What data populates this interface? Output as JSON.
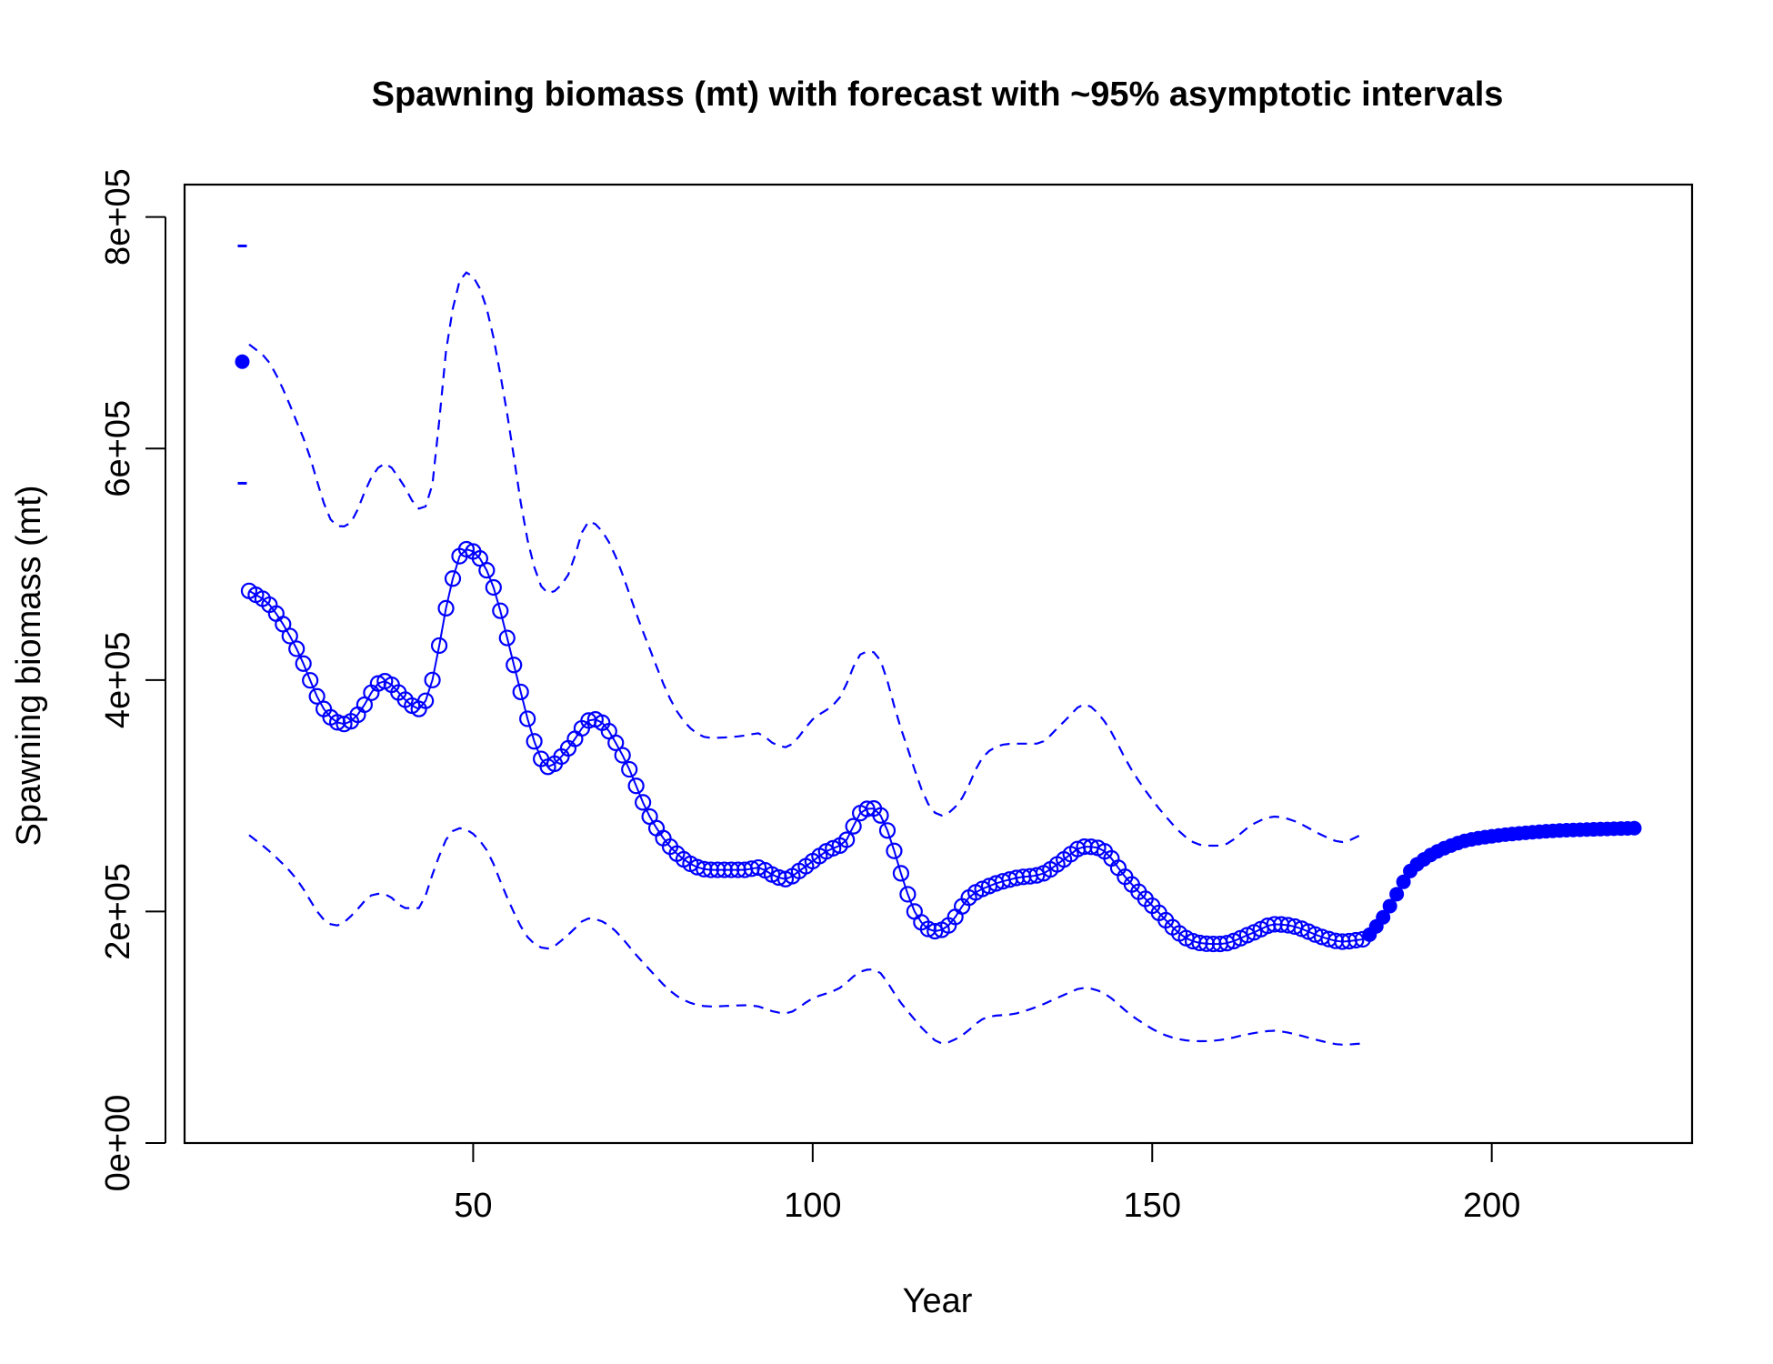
{
  "chart_data": {
    "type": "line",
    "title": "Spawning biomass (mt) with forecast with ~95% asymptotic intervals",
    "xlabel": "Year",
    "ylabel": "Spawning biomass (mt)",
    "xlim": [
      7.5,
      229.5
    ],
    "ylim": [
      0,
      800000
    ],
    "x_ticks": [
      50,
      100,
      150,
      200
    ],
    "x_tick_labels": [
      "50",
      "100",
      "150",
      "200"
    ],
    "y_ticks": [
      0,
      200000,
      400000,
      600000,
      800000
    ],
    "y_tick_labels": [
      "0e+00",
      "2e+05",
      "4e+05",
      "6e+05",
      "8e+05"
    ],
    "grid": false,
    "colors": {
      "series": "#0000ff",
      "axis": "#000000"
    },
    "virgin": {
      "x": 16,
      "value": 675000,
      "lower": 570000,
      "upper": 775000
    },
    "estimate": {
      "x_start": 17,
      "knots": [
        [
          17,
          477000
        ],
        [
          20,
          465000
        ],
        [
          24,
          427000
        ],
        [
          28,
          375000
        ],
        [
          31,
          362000
        ],
        [
          33,
          370000
        ],
        [
          36,
          397000
        ],
        [
          37,
          399000
        ],
        [
          40,
          383000
        ],
        [
          42,
          375000
        ],
        [
          44,
          400000
        ],
        [
          46,
          462000
        ],
        [
          48,
          507000
        ],
        [
          49,
          513000
        ],
        [
          51,
          505000
        ],
        [
          53,
          480000
        ],
        [
          56,
          413000
        ],
        [
          59,
          347000
        ],
        [
          61,
          325000
        ],
        [
          64,
          341000
        ],
        [
          67,
          365000
        ],
        [
          68,
          366000
        ],
        [
          72,
          335000
        ],
        [
          76,
          282000
        ],
        [
          80,
          250000
        ],
        [
          85,
          236000
        ],
        [
          90,
          236000
        ],
        [
          92,
          238000
        ],
        [
          94,
          232000
        ],
        [
          96,
          228000
        ],
        [
          98,
          235000
        ],
        [
          102,
          252000
        ],
        [
          105,
          262000
        ],
        [
          107,
          285000
        ],
        [
          109,
          289000
        ],
        [
          111,
          270000
        ],
        [
          113,
          233000
        ],
        [
          115,
          200000
        ],
        [
          118,
          183000
        ],
        [
          120,
          188000
        ],
        [
          123,
          212000
        ],
        [
          126,
          222000
        ],
        [
          130,
          229000
        ],
        [
          134,
          233000
        ],
        [
          137,
          245000
        ],
        [
          140,
          256000
        ],
        [
          143,
          252000
        ],
        [
          146,
          230000
        ],
        [
          150,
          205000
        ],
        [
          155,
          177000
        ],
        [
          160,
          172000
        ],
        [
          165,
          182000
        ],
        [
          168,
          189000
        ],
        [
          171,
          187000
        ],
        [
          175,
          178000
        ],
        [
          178,
          174000
        ],
        [
          181,
          176000
        ]
      ],
      "upper_knots": [
        [
          17,
          690000
        ],
        [
          20,
          674000
        ],
        [
          25,
          609000
        ],
        [
          30,
          533000
        ],
        [
          32,
          536000
        ],
        [
          35,
          575000
        ],
        [
          37,
          587000
        ],
        [
          40,
          566000
        ],
        [
          42,
          548000
        ],
        [
          44,
          569000
        ],
        [
          46,
          684000
        ],
        [
          48,
          745000
        ],
        [
          49,
          752000
        ],
        [
          52,
          721000
        ],
        [
          55,
          630000
        ],
        [
          58,
          521000
        ],
        [
          61,
          475000
        ],
        [
          64,
          491000
        ],
        [
          67,
          537000
        ],
        [
          70,
          519000
        ],
        [
          75,
          442000
        ],
        [
          80,
          373000
        ],
        [
          85,
          350000
        ],
        [
          90,
          352000
        ],
        [
          92,
          354000
        ],
        [
          94,
          346000
        ],
        [
          96,
          342000
        ],
        [
          100,
          366000
        ],
        [
          104,
          385000
        ],
        [
          107,
          422000
        ],
        [
          109,
          424000
        ],
        [
          113,
          358000
        ],
        [
          117,
          293000
        ],
        [
          119,
          283000
        ],
        [
          122,
          298000
        ],
        [
          125,
          333000
        ],
        [
          130,
          345000
        ],
        [
          133,
          345000
        ],
        [
          137,
          364000
        ],
        [
          140,
          379000
        ],
        [
          143,
          364000
        ],
        [
          147,
          322000
        ],
        [
          152,
          282000
        ],
        [
          156,
          260000
        ],
        [
          160,
          257000
        ],
        [
          165,
          276000
        ],
        [
          168,
          282000
        ],
        [
          171,
          278000
        ],
        [
          175,
          266000
        ],
        [
          178,
          260000
        ],
        [
          181,
          267000
        ]
      ],
      "lower_knots": [
        [
          17,
          266000
        ],
        [
          20,
          252000
        ],
        [
          24,
          228000
        ],
        [
          28,
          193000
        ],
        [
          30,
          188000
        ],
        [
          32,
          196000
        ],
        [
          35,
          214000
        ],
        [
          37,
          215000
        ],
        [
          40,
          203000
        ],
        [
          42,
          203000
        ],
        [
          44,
          232000
        ],
        [
          46,
          262000
        ],
        [
          48,
          272000
        ],
        [
          52,
          253000
        ],
        [
          55,
          212000
        ],
        [
          58,
          178000
        ],
        [
          61,
          168000
        ],
        [
          64,
          180000
        ],
        [
          67,
          194000
        ],
        [
          70,
          188000
        ],
        [
          75,
          156000
        ],
        [
          80,
          127000
        ],
        [
          85,
          118000
        ],
        [
          90,
          119000
        ],
        [
          92,
          118000
        ],
        [
          94,
          114000
        ],
        [
          96,
          112000
        ],
        [
          100,
          125000
        ],
        [
          104,
          134000
        ],
        [
          107,
          148000
        ],
        [
          109,
          150000
        ],
        [
          113,
          121000
        ],
        [
          117,
          94000
        ],
        [
          119,
          86000
        ],
        [
          122,
          93000
        ],
        [
          125,
          107000
        ],
        [
          130,
          112000
        ],
        [
          134,
          120000
        ],
        [
          137,
          128000
        ],
        [
          140,
          134000
        ],
        [
          143,
          129000
        ],
        [
          147,
          110000
        ],
        [
          152,
          93000
        ],
        [
          157,
          88000
        ],
        [
          160,
          89000
        ],
        [
          165,
          95000
        ],
        [
          168,
          97000
        ],
        [
          171,
          94000
        ],
        [
          175,
          88000
        ],
        [
          178,
          85000
        ],
        [
          181,
          86000
        ]
      ]
    },
    "forecast": {
      "x_start": 182,
      "knots": [
        [
          182,
          180000
        ],
        [
          184,
          195000
        ],
        [
          186,
          215000
        ],
        [
          188,
          235000
        ],
        [
          190,
          245000
        ],
        [
          192,
          252000
        ],
        [
          194,
          257000
        ],
        [
          196,
          261000
        ],
        [
          200,
          265000
        ],
        [
          205,
          268000
        ],
        [
          210,
          270000
        ],
        [
          215,
          271000
        ],
        [
          221,
          272000
        ]
      ]
    }
  }
}
